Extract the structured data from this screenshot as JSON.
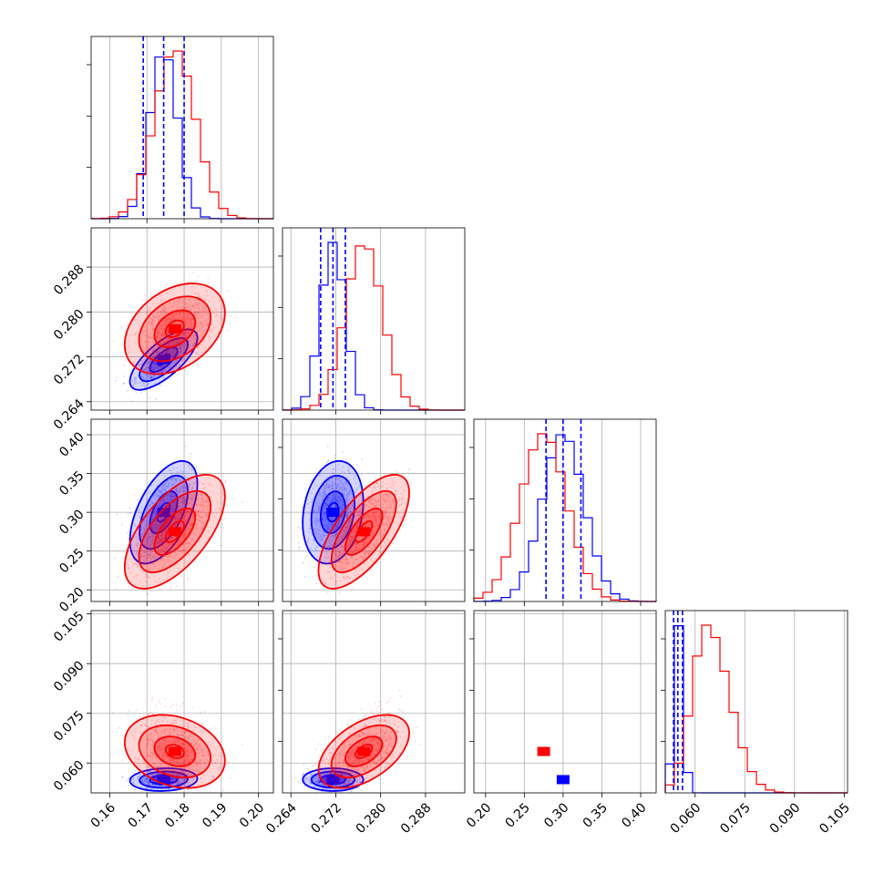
{
  "chart_data": {
    "type": "corner",
    "title": "",
    "grid": true,
    "colors": {
      "blue": "#0000ff",
      "red": "#ff0000",
      "gridline": "#b0b0b0"
    },
    "parameters": [
      {
        "range": [
          0.155,
          0.204
        ],
        "ticks": [
          0.16,
          0.17,
          0.18,
          0.19,
          0.2
        ],
        "tick_labels": [
          "0.16",
          "0.17",
          "0.18",
          "0.19",
          "0.20"
        ]
      },
      {
        "range": [
          0.2625,
          0.295
        ],
        "ticks": [
          0.264,
          0.272,
          0.28,
          0.288
        ],
        "tick_labels": [
          "0.264",
          "0.272",
          "0.280",
          "0.288"
        ]
      },
      {
        "range": [
          0.185,
          0.42
        ],
        "ticks": [
          0.2,
          0.25,
          0.3,
          0.35,
          0.4
        ],
        "tick_labels": [
          "0.20",
          "0.25",
          "0.30",
          "0.35",
          "0.40"
        ]
      },
      {
        "range": [
          0.051,
          0.106
        ],
        "ticks": [
          0.06,
          0.075,
          0.09,
          0.105
        ],
        "tick_labels": [
          "0.060",
          "0.075",
          "0.090",
          "0.105"
        ]
      }
    ],
    "series": [
      {
        "color": "#0000ff",
        "means": [
          0.1745,
          0.2715,
          0.3,
          0.055
        ],
        "sds": [
          0.0037,
          0.0022,
          0.027,
          0.0014
        ],
        "corr": [
          [
            0.72,
            0.25
          ],
          [
            0.55,
            0.2
          ],
          [
            0.1,
            0.0
          ]
        ],
        "quantiles": [
          [
            0.169,
            0.1745,
            0.18
          ],
          [
            0.2693,
            0.2715,
            0.2737
          ],
          [
            0.278,
            0.3,
            0.323
          ],
          [
            0.0535,
            0.0548,
            0.0562
          ]
        ]
      },
      {
        "color": "#ff0000",
        "means": [
          0.1775,
          0.277,
          0.275,
          0.0635
        ],
        "sds": [
          0.0055,
          0.0033,
          0.03,
          0.0045
        ],
        "corr": [
          [
            0.35,
            0.2
          ],
          [
            0.62,
            0.68
          ],
          [
            -0.25,
            0.5
          ]
        ]
      }
    ]
  }
}
